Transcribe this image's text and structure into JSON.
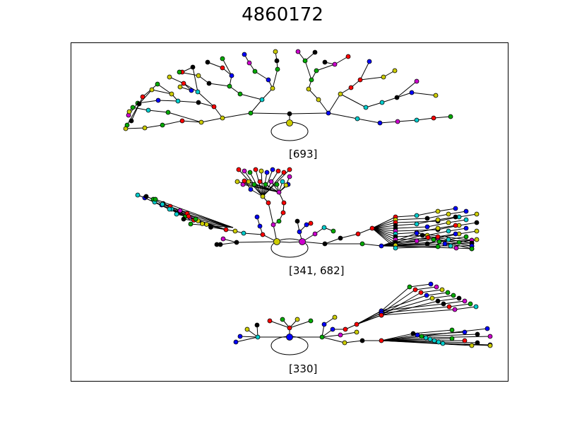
{
  "title": "4860172",
  "trees": [
    {
      "id": "top",
      "label": "[693]"
    },
    {
      "id": "middle",
      "label": "[341, 682]"
    },
    {
      "id": "bottom",
      "label": "[330]"
    }
  ],
  "node_colors": [
    "#ff0000",
    "#00aa00",
    "#0000ff",
    "#cccc00",
    "#00cccc",
    "#cc00cc",
    "#000000"
  ]
}
